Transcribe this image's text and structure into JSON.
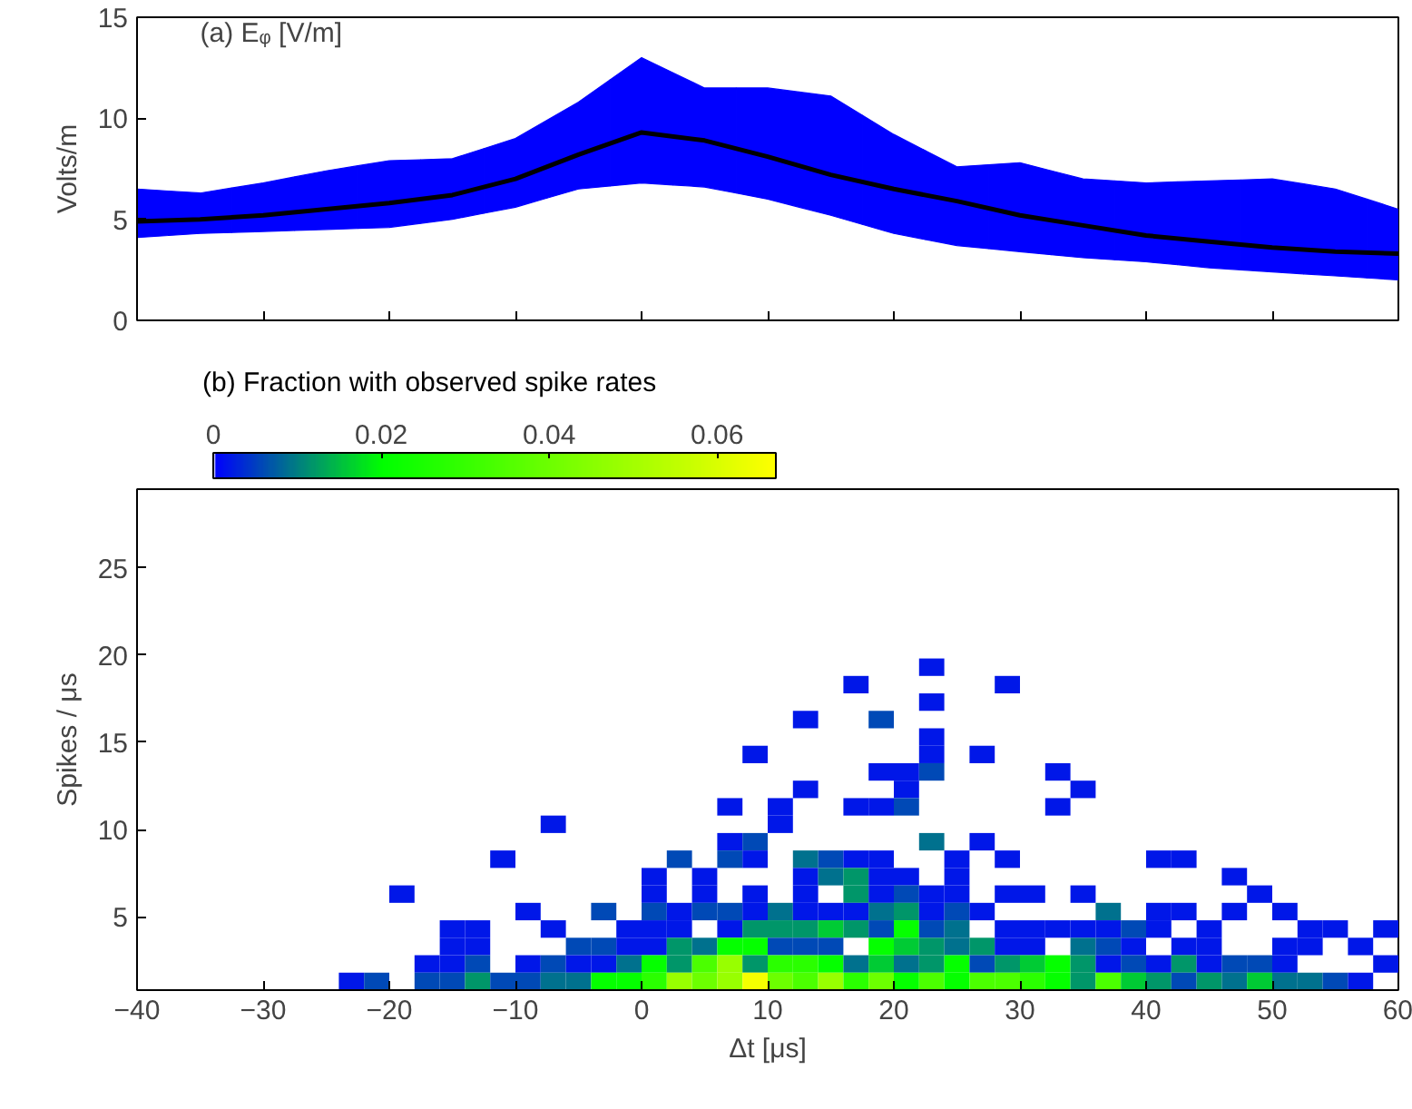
{
  "chart_data": [
    {
      "type": "line",
      "title": "(a) Eᵩ [V/m]",
      "ylabel": "Volts/m",
      "x": [
        -40,
        -35,
        -30,
        -25,
        -20,
        -15,
        -10,
        -5,
        0,
        5,
        10,
        15,
        20,
        25,
        30,
        35,
        40,
        45,
        50,
        55,
        60
      ],
      "series": [
        {
          "type": "line",
          "color": "#000000",
          "colors": [
            "#0000ff",
            "#0000ff",
            "#0000ff",
            "#0000ff",
            "#0000ff",
            "#0000ff",
            "#0000ff",
            "#0000ff",
            "#0000ff",
            "#0000ff",
            "#0000ff",
            "#0000ff",
            "#0000ff",
            "#0000ff",
            "#0000ff",
            "#0000ff",
            "#0000ff",
            "#0000ff",
            "#0000ff",
            "#0000ff",
            "#0000ff"
          ],
          "values": [
            4.9,
            5.0,
            5.2,
            5.5,
            5.8,
            6.2,
            7.0,
            8.2,
            9.3,
            8.9,
            8.1,
            7.2,
            6.5,
            5.9,
            5.2,
            4.7,
            4.2,
            3.9,
            3.6,
            3.4,
            3.3
          ],
          "lower": [
            4.1,
            4.3,
            4.4,
            4.5,
            4.6,
            5.0,
            5.6,
            6.5,
            6.8,
            6.6,
            6.0,
            5.2,
            4.3,
            3.7,
            3.4,
            3.1,
            2.9,
            2.6,
            2.4,
            2.2,
            2.0
          ],
          "upper": [
            6.5,
            6.3,
            6.8,
            7.4,
            7.9,
            8.0,
            9.0,
            10.8,
            13.0,
            11.5,
            11.5,
            11.1,
            9.2,
            7.6,
            7.8,
            7.0,
            6.8,
            6.9,
            7.0,
            6.5,
            5.5
          ]
        }
      ],
      "xlim": [
        -40,
        60
      ],
      "xticks": [
        -40,
        -30,
        -20,
        -10,
        0,
        10,
        20,
        30,
        40,
        50,
        60
      ],
      "ylim": [
        0,
        15
      ],
      "yticks": [
        0,
        5,
        10,
        15
      ],
      "tick_labels": "y"
    },
    {
      "type": "heatmap",
      "title": "(b) Fraction with observed spike rates",
      "xlabel": "Δt [μs]",
      "ylabel": "Spikes / μs",
      "x": [
        -23,
        -21,
        -19,
        -17,
        -15,
        -13,
        -11,
        -9,
        -7,
        -5,
        -3,
        -1,
        1,
        3,
        5,
        7,
        9,
        11,
        13,
        15,
        17,
        19,
        21,
        23,
        25,
        27,
        29,
        31,
        33,
        35,
        37,
        39,
        41,
        43,
        45,
        47,
        49,
        51,
        53,
        55,
        57,
        59
      ],
      "y": [
        19.3,
        18.3,
        17.3,
        16.3,
        15.3,
        14.3,
        13.3,
        12.3,
        11.3,
        10.3,
        9.3,
        8.3,
        7.3,
        6.3,
        5.3,
        4.3,
        3.3,
        2.3,
        1.3
      ],
      "cells": [
        [
          null,
          null,
          null,
          null,
          null,
          null,
          null,
          null,
          null,
          null,
          null,
          null,
          null,
          null,
          null,
          null,
          null,
          null,
          null,
          null,
          null,
          null,
          null,
          0.002,
          null,
          null,
          null,
          null,
          null,
          null,
          null,
          null,
          null,
          null,
          null,
          null,
          null,
          null,
          null,
          null,
          null,
          null
        ],
        [
          null,
          null,
          null,
          null,
          null,
          null,
          null,
          null,
          null,
          null,
          null,
          null,
          null,
          null,
          null,
          null,
          null,
          null,
          null,
          null,
          0.002,
          null,
          null,
          null,
          null,
          null,
          0.002,
          null,
          null,
          null,
          null,
          null,
          null,
          null,
          null,
          null,
          null,
          null,
          null,
          null,
          null,
          null
        ],
        [
          null,
          null,
          null,
          null,
          null,
          null,
          null,
          null,
          null,
          null,
          null,
          null,
          null,
          null,
          null,
          null,
          null,
          null,
          null,
          null,
          null,
          null,
          null,
          0.002,
          null,
          null,
          null,
          null,
          null,
          null,
          null,
          null,
          null,
          null,
          null,
          null,
          null,
          null,
          null,
          null,
          null,
          null
        ],
        [
          null,
          null,
          null,
          null,
          null,
          null,
          null,
          null,
          null,
          null,
          null,
          null,
          null,
          null,
          null,
          null,
          null,
          null,
          0.002,
          null,
          null,
          0.006,
          null,
          null,
          null,
          null,
          null,
          null,
          null,
          null,
          null,
          null,
          null,
          null,
          null,
          null,
          null,
          null,
          null,
          null,
          null,
          null
        ],
        [
          null,
          null,
          null,
          null,
          null,
          null,
          null,
          null,
          null,
          null,
          null,
          null,
          null,
          null,
          null,
          null,
          null,
          null,
          null,
          null,
          null,
          null,
          null,
          0.002,
          null,
          null,
          null,
          null,
          null,
          null,
          null,
          null,
          null,
          null,
          null,
          null,
          null,
          null,
          null,
          null,
          null,
          null
        ],
        [
          null,
          null,
          null,
          null,
          null,
          null,
          null,
          null,
          null,
          null,
          null,
          null,
          null,
          null,
          null,
          null,
          0.002,
          null,
          null,
          null,
          null,
          null,
          null,
          0.002,
          null,
          0.002,
          null,
          null,
          null,
          null,
          null,
          null,
          null,
          null,
          null,
          null,
          null,
          null,
          null,
          null,
          null,
          null
        ],
        [
          null,
          null,
          null,
          null,
          null,
          null,
          null,
          null,
          null,
          null,
          null,
          null,
          null,
          null,
          null,
          null,
          null,
          null,
          null,
          null,
          null,
          0.002,
          0.002,
          0.006,
          null,
          null,
          null,
          null,
          0.002,
          null,
          null,
          null,
          null,
          null,
          null,
          null,
          null,
          null,
          null,
          null,
          null,
          null
        ],
        [
          null,
          null,
          null,
          null,
          null,
          null,
          null,
          null,
          null,
          null,
          null,
          null,
          null,
          null,
          null,
          null,
          null,
          null,
          0.002,
          null,
          null,
          null,
          0.002,
          null,
          null,
          null,
          null,
          null,
          null,
          0.002,
          null,
          null,
          null,
          null,
          null,
          null,
          null,
          null,
          null,
          null,
          null,
          null
        ],
        [
          null,
          null,
          null,
          null,
          null,
          null,
          null,
          null,
          null,
          null,
          null,
          null,
          null,
          null,
          null,
          0.002,
          null,
          0.002,
          null,
          null,
          0.002,
          0.002,
          0.006,
          null,
          null,
          null,
          null,
          null,
          0.002,
          null,
          null,
          null,
          null,
          null,
          null,
          null,
          null,
          null,
          null,
          null,
          null,
          null
        ],
        [
          null,
          null,
          null,
          null,
          null,
          null,
          null,
          null,
          0.002,
          null,
          null,
          null,
          null,
          null,
          null,
          null,
          null,
          0.002,
          null,
          null,
          null,
          null,
          null,
          null,
          null,
          null,
          null,
          null,
          null,
          null,
          null,
          null,
          null,
          null,
          null,
          null,
          null,
          null,
          null,
          null,
          null,
          null
        ],
        [
          null,
          null,
          null,
          null,
          null,
          null,
          null,
          null,
          null,
          null,
          null,
          null,
          null,
          null,
          null,
          0.002,
          0.006,
          null,
          null,
          null,
          null,
          null,
          null,
          0.009,
          null,
          0.002,
          null,
          null,
          null,
          null,
          null,
          null,
          null,
          null,
          null,
          null,
          null,
          null,
          null,
          null,
          null,
          null
        ],
        [
          null,
          null,
          null,
          null,
          null,
          null,
          0.002,
          null,
          null,
          null,
          null,
          null,
          null,
          0.006,
          null,
          0.006,
          0.002,
          null,
          0.009,
          0.006,
          0.002,
          0.002,
          null,
          null,
          0.002,
          null,
          0.002,
          null,
          null,
          null,
          null,
          null,
          0.002,
          0.002,
          null,
          null,
          null,
          null,
          null,
          null,
          null,
          null
        ],
        [
          null,
          null,
          null,
          null,
          null,
          null,
          null,
          null,
          null,
          null,
          null,
          null,
          0.002,
          null,
          0.002,
          null,
          null,
          null,
          0.002,
          0.009,
          0.012,
          0.002,
          0.002,
          null,
          0.002,
          null,
          null,
          null,
          null,
          null,
          null,
          null,
          null,
          null,
          null,
          0.002,
          null,
          null,
          null,
          null,
          null,
          null
        ],
        [
          null,
          null,
          0.002,
          null,
          null,
          null,
          null,
          null,
          null,
          null,
          null,
          null,
          0.002,
          null,
          0.002,
          null,
          0.002,
          null,
          0.002,
          null,
          0.012,
          0.002,
          0.006,
          0.002,
          0.002,
          null,
          0.002,
          0.002,
          null,
          0.002,
          null,
          null,
          null,
          null,
          null,
          null,
          0.002,
          null,
          null,
          null,
          null,
          null
        ],
        [
          null,
          null,
          null,
          null,
          null,
          null,
          null,
          0.002,
          null,
          null,
          0.006,
          null,
          0.006,
          0.002,
          0.006,
          0.006,
          0.002,
          0.009,
          0.002,
          0.002,
          0.002,
          0.009,
          0.012,
          0.002,
          0.006,
          0.002,
          null,
          null,
          null,
          null,
          0.009,
          null,
          0.002,
          0.002,
          null,
          0.002,
          null,
          0.002,
          null,
          null,
          null,
          null
        ],
        [
          null,
          null,
          null,
          null,
          0.002,
          0.002,
          null,
          null,
          0.002,
          null,
          null,
          0.002,
          0.002,
          0.002,
          null,
          0.002,
          0.012,
          0.012,
          0.012,
          0.016,
          0.012,
          0.006,
          0.021,
          0.006,
          0.009,
          null,
          0.002,
          0.002,
          0.002,
          0.002,
          0.002,
          0.006,
          0.002,
          null,
          0.002,
          null,
          null,
          null,
          0.002,
          0.002,
          null,
          0.002
        ],
        [
          null,
          null,
          null,
          null,
          0.002,
          0.002,
          null,
          null,
          null,
          0.006,
          0.006,
          0.002,
          0.002,
          0.012,
          0.009,
          0.021,
          0.021,
          0.006,
          0.006,
          0.006,
          null,
          0.021,
          0.016,
          0.012,
          0.009,
          0.012,
          0.002,
          0.002,
          null,
          0.009,
          0.006,
          0.002,
          null,
          0.002,
          0.002,
          null,
          null,
          0.002,
          0.002,
          null,
          0.002,
          null
        ],
        [
          null,
          null,
          null,
          0.002,
          0.002,
          0.006,
          null,
          0.002,
          0.006,
          0.002,
          0.002,
          0.009,
          0.021,
          0.012,
          0.034,
          0.048,
          0.012,
          0.028,
          0.028,
          0.021,
          0.009,
          0.016,
          0.009,
          0.012,
          0.021,
          0.006,
          0.012,
          0.016,
          0.021,
          0.012,
          0.002,
          0.006,
          0.002,
          0.012,
          0.002,
          0.006,
          0.006,
          0.002,
          null,
          null,
          null,
          0.002
        ],
        [
          0.002,
          0.006,
          null,
          0.006,
          0.006,
          0.012,
          0.006,
          0.006,
          0.009,
          0.009,
          0.021,
          0.021,
          0.028,
          0.048,
          0.04,
          0.048,
          0.065,
          0.04,
          0.034,
          0.048,
          0.028,
          0.04,
          0.021,
          0.034,
          0.021,
          0.034,
          0.034,
          0.028,
          0.021,
          0.012,
          0.034,
          0.016,
          0.012,
          0.006,
          0.012,
          0.009,
          0.016,
          0.009,
          0.009,
          0.006,
          0.002,
          null
        ]
      ],
      "clim": [
        0,
        0.067
      ],
      "cticks": [
        0,
        0.02,
        0.04,
        0.06
      ],
      "xlim": [
        -40,
        60
      ],
      "xticks": [
        -40,
        -30,
        -20,
        -10,
        0,
        10,
        20,
        30,
        40,
        50,
        60
      ],
      "ylim": [
        0.8,
        29.5
      ],
      "yticks": [
        5,
        10,
        15,
        20,
        25
      ]
    }
  ]
}
